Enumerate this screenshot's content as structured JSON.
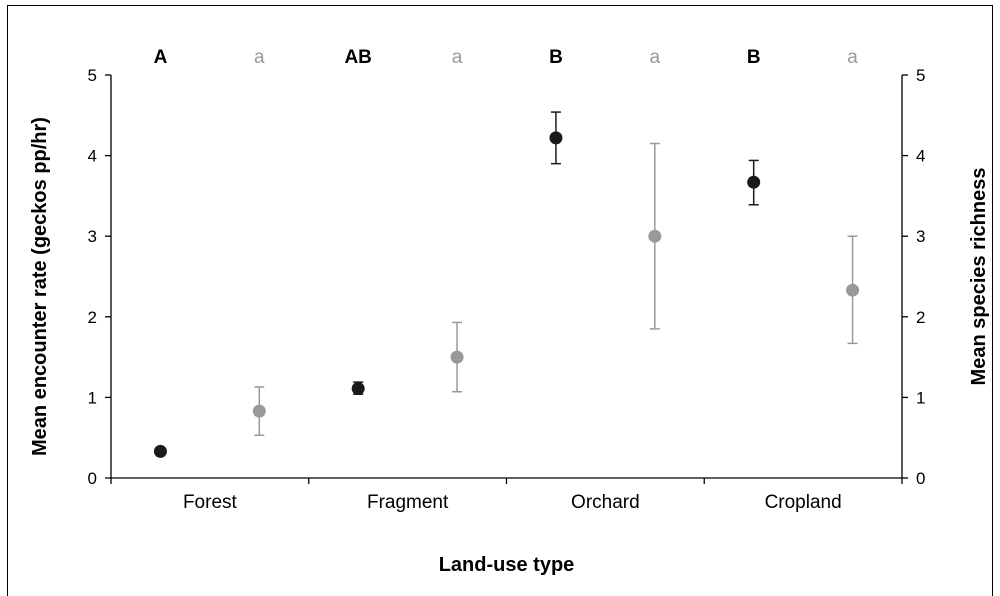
{
  "chart_data": {
    "type": "scatter",
    "xlabel": "Land-use type",
    "ylabel_left": "Mean encounter rate (geckos pp/hr)",
    "ylabel_right": "Mean species richness",
    "categories": [
      "Forest",
      "Fragment",
      "Orchard",
      "Cropland"
    ],
    "ylim_left": [
      0,
      5
    ],
    "ylim_right": [
      0,
      5
    ],
    "yticks_left": [
      "0",
      "1",
      "2",
      "3",
      "4",
      "5"
    ],
    "yticks_right": [
      "0",
      "1",
      "2",
      "3",
      "4",
      "5"
    ],
    "grid": false,
    "significance_letters_left": [
      "A",
      "AB",
      "B",
      "B"
    ],
    "significance_letters_right": [
      "a",
      "a",
      "a",
      "a"
    ],
    "series": [
      {
        "axis": "left",
        "color": "#1a1a1a",
        "values": [
          0.33,
          1.11,
          4.22,
          3.67
        ],
        "err_low": [
          0.33,
          1.04,
          3.9,
          3.39
        ],
        "err_high": [
          0.33,
          1.19,
          4.54,
          3.94
        ]
      },
      {
        "axis": "right",
        "color": "#999999",
        "values": [
          0.83,
          1.5,
          3.0,
          2.33
        ],
        "err_low": [
          0.53,
          1.07,
          1.85,
          1.67
        ],
        "err_high": [
          1.13,
          1.93,
          4.15,
          3.0
        ]
      }
    ]
  }
}
